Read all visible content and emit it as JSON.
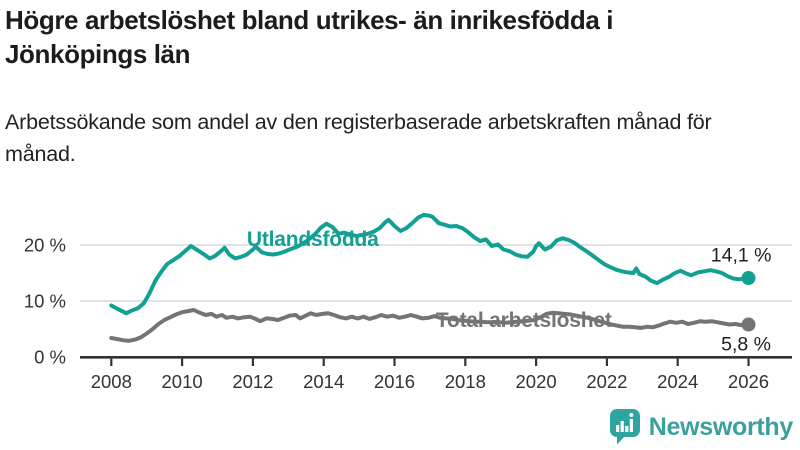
{
  "header": {
    "title": "Högre arbetslöshet bland utrikes- än inrikesfödda i Jönköpings län",
    "subtitle": "Arbetssökande som andel av den registerbaserade arbetskraften månad för månad."
  },
  "footer": {
    "brand": "Newsworthy",
    "logo_icon": "speech-bubble-bar-chart-exclamation",
    "logo_color": "#3ba09c"
  },
  "colors": {
    "accent_teal": "#13a094",
    "series_gray": "#747474",
    "axis": "#333333",
    "gridline": "#d8d8d8",
    "text_dark": "#1c1c1c"
  },
  "chart_data": {
    "type": "line",
    "title": "Högre arbetslöshet bland utrikes- än inrikesfödda i Jönköpings län",
    "subtitle": "Arbetssökande som andel av den registerbaserade arbetskraften månad för månad.",
    "xlabel": "",
    "ylabel": "",
    "xlim": [
      2007.6,
      2027.2
    ],
    "ylim": [
      0,
      26.3
    ],
    "grid": "horizontal-only",
    "legend_position": "inline-labels",
    "x_ticks": [
      2008,
      2010,
      2012,
      2014,
      2016,
      2018,
      2020,
      2022,
      2024,
      2026
    ],
    "y_ticks": [
      {
        "value": 0,
        "label": "0 %"
      },
      {
        "value": 10,
        "label": "10 %"
      },
      {
        "value": 20,
        "label": "20 %"
      }
    ],
    "series": [
      {
        "name": "Total arbetslöshet",
        "color": "#747474",
        "value_label": "5,8 %",
        "label_pos": [
          2017.17,
          5.36
        ],
        "points": [
          [
            2008.0,
            3.4
          ],
          [
            2008.17,
            3.2
          ],
          [
            2008.33,
            3.0
          ],
          [
            2008.5,
            2.9
          ],
          [
            2008.67,
            3.1
          ],
          [
            2008.83,
            3.5
          ],
          [
            2009.0,
            4.2
          ],
          [
            2009.17,
            5.0
          ],
          [
            2009.33,
            5.9
          ],
          [
            2009.5,
            6.6
          ],
          [
            2009.67,
            7.1
          ],
          [
            2009.83,
            7.6
          ],
          [
            2010.0,
            8.0
          ],
          [
            2010.17,
            8.2
          ],
          [
            2010.33,
            8.4
          ],
          [
            2010.5,
            7.9
          ],
          [
            2010.67,
            7.5
          ],
          [
            2010.83,
            7.7
          ],
          [
            2010.97,
            7.2
          ],
          [
            2011.13,
            7.5
          ],
          [
            2011.25,
            7.0
          ],
          [
            2011.42,
            7.2
          ],
          [
            2011.58,
            6.9
          ],
          [
            2011.75,
            7.1
          ],
          [
            2011.92,
            7.2
          ],
          [
            2012.08,
            6.8
          ],
          [
            2012.21,
            6.4
          ],
          [
            2012.38,
            6.9
          ],
          [
            2012.54,
            6.8
          ],
          [
            2012.71,
            6.6
          ],
          [
            2012.88,
            7.0
          ],
          [
            2013.04,
            7.4
          ],
          [
            2013.21,
            7.5
          ],
          [
            2013.33,
            6.9
          ],
          [
            2013.5,
            7.4
          ],
          [
            2013.63,
            7.8
          ],
          [
            2013.79,
            7.5
          ],
          [
            2013.96,
            7.7
          ],
          [
            2014.13,
            7.8
          ],
          [
            2014.29,
            7.5
          ],
          [
            2014.46,
            7.1
          ],
          [
            2014.63,
            6.9
          ],
          [
            2014.79,
            7.2
          ],
          [
            2014.96,
            6.9
          ],
          [
            2015.13,
            7.2
          ],
          [
            2015.29,
            6.8
          ],
          [
            2015.46,
            7.1
          ],
          [
            2015.63,
            7.5
          ],
          [
            2015.79,
            7.2
          ],
          [
            2015.96,
            7.4
          ],
          [
            2016.13,
            7.0
          ],
          [
            2016.29,
            7.2
          ],
          [
            2016.46,
            7.5
          ],
          [
            2016.63,
            7.2
          ],
          [
            2016.79,
            6.9
          ],
          [
            2016.96,
            7.0
          ],
          [
            2017.13,
            7.3
          ],
          [
            2017.29,
            7.0
          ],
          [
            2017.46,
            6.9
          ],
          [
            2017.63,
            6.8
          ],
          [
            2017.79,
            6.6
          ],
          [
            2017.96,
            6.5
          ],
          [
            2018.13,
            6.4
          ],
          [
            2018.29,
            6.3
          ],
          [
            2018.46,
            6.3
          ],
          [
            2018.63,
            6.2
          ],
          [
            2018.79,
            6.2
          ],
          [
            2018.96,
            6.2
          ],
          [
            2019.13,
            6.1
          ],
          [
            2019.29,
            6.2
          ],
          [
            2019.46,
            6.3
          ],
          [
            2019.63,
            6.4
          ],
          [
            2019.79,
            6.5
          ],
          [
            2019.96,
            6.6
          ],
          [
            2020.13,
            7.1
          ],
          [
            2020.29,
            7.7
          ],
          [
            2020.46,
            7.9
          ],
          [
            2020.63,
            7.8
          ],
          [
            2020.79,
            7.7
          ],
          [
            2020.96,
            7.6
          ],
          [
            2021.13,
            7.4
          ],
          [
            2021.29,
            7.2
          ],
          [
            2021.46,
            7.0
          ],
          [
            2021.63,
            6.7
          ],
          [
            2021.79,
            6.4
          ],
          [
            2021.96,
            6.1
          ],
          [
            2022.13,
            5.8
          ],
          [
            2022.29,
            5.6
          ],
          [
            2022.46,
            5.4
          ],
          [
            2022.63,
            5.4
          ],
          [
            2022.79,
            5.3
          ],
          [
            2022.96,
            5.2
          ],
          [
            2023.13,
            5.4
          ],
          [
            2023.29,
            5.3
          ],
          [
            2023.46,
            5.6
          ],
          [
            2023.63,
            6.0
          ],
          [
            2023.79,
            6.3
          ],
          [
            2023.96,
            6.1
          ],
          [
            2024.13,
            6.3
          ],
          [
            2024.29,
            5.9
          ],
          [
            2024.46,
            6.1
          ],
          [
            2024.63,
            6.4
          ],
          [
            2024.79,
            6.3
          ],
          [
            2024.96,
            6.4
          ],
          [
            2025.13,
            6.2
          ],
          [
            2025.29,
            6.0
          ],
          [
            2025.46,
            5.8
          ],
          [
            2025.63,
            5.9
          ],
          [
            2025.79,
            5.7
          ],
          [
            2026.0,
            5.8
          ]
        ]
      },
      {
        "name": "Utlandsfödda",
        "color": "#13a094",
        "value_label": "14,1 %",
        "label_pos": [
          2011.83,
          19.82
        ],
        "points": [
          [
            2008.0,
            9.2
          ],
          [
            2008.17,
            8.6
          ],
          [
            2008.33,
            8.1
          ],
          [
            2008.42,
            7.8
          ],
          [
            2008.58,
            8.3
          ],
          [
            2008.75,
            8.7
          ],
          [
            2008.92,
            9.6
          ],
          [
            2009.08,
            11.4
          ],
          [
            2009.25,
            13.7
          ],
          [
            2009.42,
            15.3
          ],
          [
            2009.58,
            16.6
          ],
          [
            2009.75,
            17.3
          ],
          [
            2009.92,
            18.0
          ],
          [
            2010.08,
            18.9
          ],
          [
            2010.25,
            19.8
          ],
          [
            2010.33,
            19.5
          ],
          [
            2010.5,
            18.8
          ],
          [
            2010.67,
            18.1
          ],
          [
            2010.78,
            17.6
          ],
          [
            2010.92,
            18.0
          ],
          [
            2011.08,
            18.8
          ],
          [
            2011.2,
            19.5
          ],
          [
            2011.33,
            18.3
          ],
          [
            2011.5,
            17.6
          ],
          [
            2011.67,
            17.9
          ],
          [
            2011.83,
            18.3
          ],
          [
            2012.0,
            19.2
          ],
          [
            2012.08,
            19.7
          ],
          [
            2012.25,
            18.7
          ],
          [
            2012.42,
            18.4
          ],
          [
            2012.58,
            18.3
          ],
          [
            2012.75,
            18.5
          ],
          [
            2012.92,
            18.9
          ],
          [
            2013.08,
            19.3
          ],
          [
            2013.25,
            19.7
          ],
          [
            2013.42,
            20.3
          ],
          [
            2013.58,
            21.0
          ],
          [
            2013.75,
            21.9
          ],
          [
            2013.92,
            23.1
          ],
          [
            2014.08,
            23.8
          ],
          [
            2014.25,
            23.2
          ],
          [
            2014.42,
            22.0
          ],
          [
            2014.58,
            22.2
          ],
          [
            2014.75,
            21.9
          ],
          [
            2014.92,
            21.6
          ],
          [
            2015.08,
            21.8
          ],
          [
            2015.25,
            22.0
          ],
          [
            2015.42,
            22.4
          ],
          [
            2015.58,
            23.0
          ],
          [
            2015.75,
            24.1
          ],
          [
            2015.83,
            24.5
          ],
          [
            2016.0,
            23.4
          ],
          [
            2016.17,
            22.5
          ],
          [
            2016.33,
            23.0
          ],
          [
            2016.5,
            23.9
          ],
          [
            2016.67,
            24.9
          ],
          [
            2016.83,
            25.4
          ],
          [
            2017.0,
            25.2
          ],
          [
            2017.08,
            25.0
          ],
          [
            2017.25,
            23.9
          ],
          [
            2017.42,
            23.6
          ],
          [
            2017.58,
            23.3
          ],
          [
            2017.75,
            23.4
          ],
          [
            2017.92,
            23.0
          ],
          [
            2018.08,
            22.3
          ],
          [
            2018.25,
            21.4
          ],
          [
            2018.42,
            20.7
          ],
          [
            2018.58,
            21.0
          ],
          [
            2018.75,
            19.8
          ],
          [
            2018.92,
            20.1
          ],
          [
            2019.08,
            19.2
          ],
          [
            2019.25,
            18.9
          ],
          [
            2019.42,
            18.3
          ],
          [
            2019.58,
            18.0
          ],
          [
            2019.75,
            17.9
          ],
          [
            2019.92,
            18.8
          ],
          [
            2020.0,
            19.8
          ],
          [
            2020.08,
            20.3
          ],
          [
            2020.25,
            19.2
          ],
          [
            2020.42,
            19.7
          ],
          [
            2020.58,
            20.8
          ],
          [
            2020.75,
            21.2
          ],
          [
            2020.92,
            20.9
          ],
          [
            2021.08,
            20.4
          ],
          [
            2021.25,
            19.6
          ],
          [
            2021.42,
            18.9
          ],
          [
            2021.58,
            18.2
          ],
          [
            2021.75,
            17.4
          ],
          [
            2021.92,
            16.6
          ],
          [
            2022.08,
            16.1
          ],
          [
            2022.25,
            15.6
          ],
          [
            2022.42,
            15.3
          ],
          [
            2022.58,
            15.1
          ],
          [
            2022.75,
            15.0
          ],
          [
            2022.83,
            15.8
          ],
          [
            2022.92,
            14.8
          ],
          [
            2023.08,
            14.4
          ],
          [
            2023.25,
            13.6
          ],
          [
            2023.42,
            13.2
          ],
          [
            2023.58,
            13.8
          ],
          [
            2023.75,
            14.3
          ],
          [
            2023.92,
            15.0
          ],
          [
            2024.08,
            15.4
          ],
          [
            2024.25,
            14.9
          ],
          [
            2024.38,
            14.6
          ],
          [
            2024.58,
            15.1
          ],
          [
            2024.75,
            15.3
          ],
          [
            2024.92,
            15.5
          ],
          [
            2025.08,
            15.3
          ],
          [
            2025.25,
            15.0
          ],
          [
            2025.42,
            14.4
          ],
          [
            2025.58,
            14.0
          ],
          [
            2025.75,
            13.9
          ],
          [
            2025.88,
            14.0
          ],
          [
            2026.0,
            14.1
          ]
        ]
      }
    ]
  }
}
